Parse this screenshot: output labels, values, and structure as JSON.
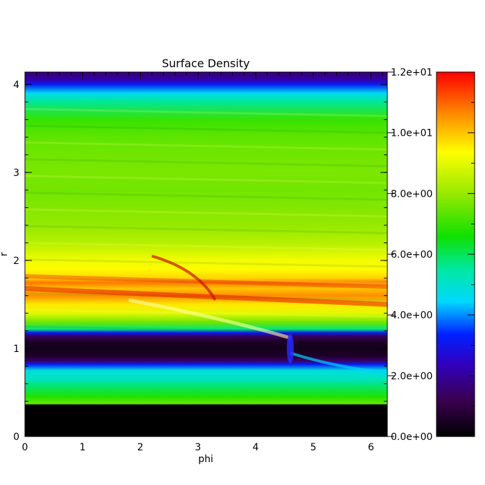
{
  "chart_data": {
    "type": "heatmap",
    "title": "Surface Density",
    "xlabel": "phi",
    "ylabel": "r",
    "xlim": [
      0,
      6.283
    ],
    "ylim": [
      0,
      4.14
    ],
    "x_ticks": [
      0,
      1,
      2,
      3,
      4,
      5,
      6
    ],
    "y_ticks": [
      0,
      1,
      2,
      3,
      4
    ],
    "x_tick_labels": [
      "0",
      "1",
      "2",
      "3",
      "4",
      "5",
      "6"
    ],
    "y_tick_labels": [
      "0",
      "1",
      "2",
      "3",
      "4"
    ],
    "colorbar": {
      "min": 0,
      "max": 12,
      "ticks": [
        0,
        2,
        4,
        6,
        8,
        10,
        12
      ],
      "tick_labels": [
        "0.0e+00",
        "2.0e+00",
        "4.0e+00",
        "6.0e+00",
        "8.0e+00",
        "1.0e+01",
        "1.2e+01"
      ],
      "colormap": "rainbow"
    },
    "radial_profile": {
      "r": [
        0.0,
        0.36,
        0.37,
        0.45,
        0.55,
        0.65,
        0.75,
        0.82,
        0.86,
        0.92,
        1.0,
        1.08,
        1.14,
        1.18,
        1.22,
        1.3,
        1.4,
        1.5,
        1.6,
        1.68,
        1.75,
        1.8,
        1.9,
        2.0,
        2.1,
        2.2,
        2.4,
        2.6,
        2.8,
        3.0,
        3.2,
        3.4,
        3.6,
        3.8,
        3.9,
        4.0,
        4.05,
        4.1,
        4.14
      ],
      "density": [
        0.0,
        0.0,
        7.5,
        6.8,
        6.0,
        5.2,
        4.8,
        3.2,
        1.4,
        0.6,
        0.4,
        0.6,
        1.4,
        3.2,
        5.8,
        7.6,
        9.0,
        9.6,
        10.6,
        10.0,
        10.8,
        9.8,
        9.4,
        9.2,
        8.8,
        8.4,
        8.0,
        7.8,
        7.6,
        7.7,
        7.6,
        7.4,
        7.0,
        5.6,
        4.6,
        3.2,
        2.2,
        1.8,
        1.7
      ]
    },
    "planet": {
      "phi": 4.6,
      "r": 1.0
    }
  }
}
